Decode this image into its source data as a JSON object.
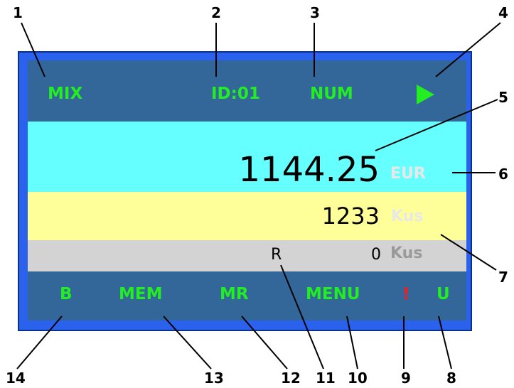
{
  "callouts": {
    "n1": "1",
    "n2": "2",
    "n3": "3",
    "n4": "4",
    "n5": "5",
    "n6": "6",
    "n7": "7",
    "n8": "8",
    "n9": "9",
    "n10": "10",
    "n11": "11",
    "n12": "12",
    "n13": "13",
    "n14": "14"
  },
  "status_bar": {
    "mode": "MIX",
    "id": "ID:01",
    "count_mode": "NUM",
    "start_icon": "play-icon"
  },
  "amount": {
    "value": "1144.25",
    "currency": "EUR"
  },
  "count": {
    "value": "1233",
    "unit": "Kus"
  },
  "reject": {
    "marker": "R",
    "value": "0",
    "unit": "Kus"
  },
  "bottom_bar": {
    "b": "B",
    "mem": "MEM",
    "mr": "MR",
    "menu": "MENU",
    "warning": "!",
    "u": "U"
  },
  "colors": {
    "frame": "#2a62ee",
    "screen": "#336699",
    "amount_row": "#66ffff",
    "count_row": "#ffff99",
    "reject_row": "#d3d3d3",
    "indicator_green": "#22ee22",
    "warning_red": "#ff1a1a"
  }
}
